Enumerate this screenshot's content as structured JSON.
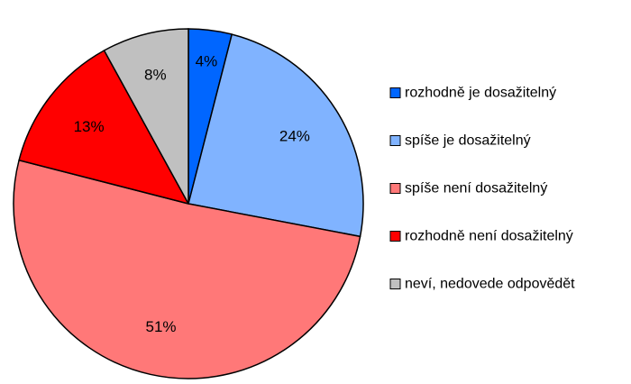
{
  "chart_data": {
    "type": "pie",
    "title": "",
    "legend_position": "right",
    "start_angle": "12 o'clock",
    "direction": "clockwise",
    "slices": [
      {
        "label": "rozhodně je dosažitelný",
        "value": 4,
        "display": "4%",
        "color": "#0066ff"
      },
      {
        "label": "spíše je dosažitelný",
        "value": 24,
        "display": "24%",
        "color": "#80b3ff"
      },
      {
        "label": "spíše není dosažitelný",
        "value": 51,
        "display": "51%",
        "color": "#ff7878"
      },
      {
        "label": "rozhodně není dosažitelný",
        "value": 13,
        "display": "13%",
        "color": "#ff0000"
      },
      {
        "label": "neví, nedovede odpovědět",
        "value": 8,
        "display": "8%",
        "color": "#c0c0c0"
      }
    ]
  }
}
